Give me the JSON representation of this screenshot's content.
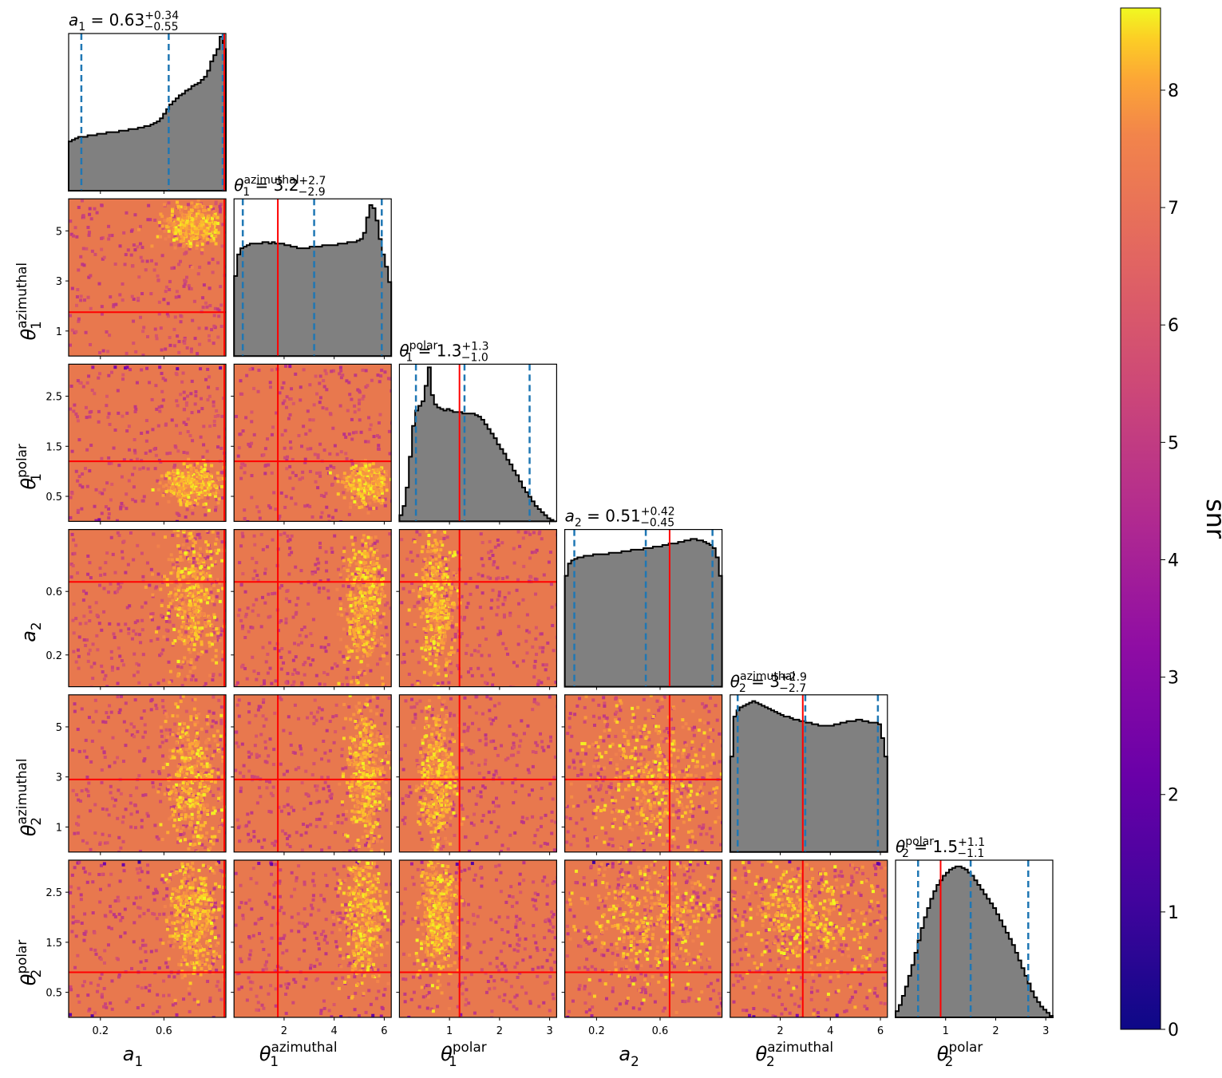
{
  "chart_data": {
    "type": "corner",
    "parameters": [
      {
        "symbol": "a",
        "subscript": "1",
        "superscript": "",
        "range": [
          0,
          0.99
        ],
        "ticks": [
          0.2,
          0.6
        ],
        "tick_labels": [
          "0.2",
          "0.6"
        ],
        "truth": 0.98,
        "title": {
          "value": "0.63",
          "plus": "+0.34",
          "minus": "−0.55"
        },
        "quantiles": [
          0.08,
          0.63,
          0.97
        ],
        "hist": [
          0.32,
          0.33,
          0.34,
          0.35,
          0.35,
          0.35,
          0.36,
          0.36,
          0.36,
          0.37,
          0.37,
          0.37,
          0.38,
          0.38,
          0.38,
          0.38,
          0.39,
          0.39,
          0.39,
          0.4,
          0.4,
          0.4,
          0.41,
          0.41,
          0.42,
          0.42,
          0.43,
          0.44,
          0.45,
          0.47,
          0.5,
          0.53,
          0.56,
          0.58,
          0.6,
          0.62,
          0.63,
          0.65,
          0.66,
          0.68,
          0.69,
          0.7,
          0.72,
          0.74,
          0.78,
          0.84,
          0.88,
          0.92,
          1.0,
          0.92
        ]
      },
      {
        "symbol": "θ",
        "subscript": "1",
        "superscript": "azimuthal",
        "range": [
          0,
          6.28
        ],
        "ticks": [
          1,
          3,
          5
        ],
        "tick_labels": [
          "1",
          "3",
          "5"
        ],
        "axis_ticks": [
          2,
          4,
          6
        ],
        "axis_tick_labels": [
          "2",
          "4",
          "6"
        ],
        "truth": 1.75,
        "title": {
          "value": "3.2",
          "plus": "+2.7",
          "minus": "−2.9"
        },
        "quantiles": [
          0.35,
          3.2,
          5.9
        ],
        "hist": [
          0.52,
          0.66,
          0.7,
          0.71,
          0.72,
          0.73,
          0.73,
          0.73,
          0.73,
          0.74,
          0.74,
          0.73,
          0.74,
          0.73,
          0.73,
          0.73,
          0.72,
          0.72,
          0.71,
          0.71,
          0.7,
          0.7,
          0.7,
          0.7,
          0.71,
          0.71,
          0.71,
          0.71,
          0.72,
          0.72,
          0.72,
          0.72,
          0.72,
          0.73,
          0.73,
          0.73,
          0.74,
          0.74,
          0.74,
          0.75,
          0.76,
          0.8,
          0.9,
          0.98,
          0.96,
          0.88,
          0.76,
          0.66,
          0.58,
          0.48
        ]
      },
      {
        "symbol": "θ",
        "subscript": "1",
        "superscript": "polar",
        "range": [
          0,
          3.14
        ],
        "ticks": [
          0.5,
          1.5,
          2.5
        ],
        "tick_labels": [
          "0.5",
          "1.5",
          "2.5"
        ],
        "axis_ticks": [
          1,
          2,
          3
        ],
        "axis_tick_labels": [
          "1",
          "2",
          "3"
        ],
        "truth": 1.2,
        "title": {
          "value": "1.3",
          "plus": "+1.3",
          "minus": "−1.0"
        },
        "quantiles": [
          0.33,
          1.3,
          2.6
        ],
        "hist": [
          0.04,
          0.1,
          0.22,
          0.42,
          0.62,
          0.72,
          0.75,
          0.78,
          0.88,
          1.0,
          0.82,
          0.76,
          0.74,
          0.73,
          0.72,
          0.73,
          0.72,
          0.71,
          0.71,
          0.71,
          0.7,
          0.7,
          0.7,
          0.7,
          0.69,
          0.68,
          0.66,
          0.63,
          0.6,
          0.57,
          0.54,
          0.5,
          0.47,
          0.44,
          0.4,
          0.37,
          0.33,
          0.3,
          0.26,
          0.22,
          0.19,
          0.16,
          0.13,
          0.1,
          0.08,
          0.06,
          0.04,
          0.02,
          0.01,
          0.0
        ]
      },
      {
        "symbol": "a",
        "subscript": "2",
        "superscript": "",
        "range": [
          0,
          0.99
        ],
        "ticks": [
          0.2,
          0.6
        ],
        "tick_labels": [
          "0.2",
          "0.6"
        ],
        "truth": 0.66,
        "title": {
          "value": "0.51",
          "plus": "+0.42",
          "minus": "−0.45"
        },
        "quantiles": [
          0.06,
          0.51,
          0.93
        ],
        "hist": [
          0.72,
          0.8,
          0.82,
          0.83,
          0.84,
          0.84,
          0.85,
          0.85,
          0.85,
          0.86,
          0.86,
          0.86,
          0.86,
          0.86,
          0.87,
          0.87,
          0.87,
          0.87,
          0.88,
          0.88,
          0.88,
          0.89,
          0.89,
          0.89,
          0.89,
          0.9,
          0.9,
          0.9,
          0.91,
          0.91,
          0.91,
          0.92,
          0.92,
          0.93,
          0.93,
          0.93,
          0.94,
          0.94,
          0.95,
          0.95,
          0.96,
          0.96,
          0.95,
          0.95,
          0.94,
          0.93,
          0.92,
          0.9,
          0.84,
          0.72
        ]
      },
      {
        "symbol": "θ",
        "subscript": "2",
        "superscript": "azimuthal",
        "range": [
          0,
          6.28
        ],
        "ticks": [
          1,
          3,
          5
        ],
        "tick_labels": [
          "1",
          "3",
          "5"
        ],
        "axis_ticks": [
          2,
          4,
          6
        ],
        "axis_tick_labels": [
          "2",
          "4",
          "6"
        ],
        "truth": 2.9,
        "title": {
          "value": "3",
          "plus": "+2.9",
          "minus": "−2.7"
        },
        "quantiles": [
          0.3,
          3.0,
          5.9
        ],
        "hist": [
          0.62,
          0.88,
          0.92,
          0.94,
          0.95,
          0.96,
          0.97,
          0.98,
          0.97,
          0.96,
          0.95,
          0.94,
          0.93,
          0.92,
          0.91,
          0.9,
          0.89,
          0.88,
          0.88,
          0.87,
          0.86,
          0.86,
          0.85,
          0.85,
          0.84,
          0.84,
          0.83,
          0.83,
          0.82,
          0.82,
          0.82,
          0.82,
          0.82,
          0.83,
          0.83,
          0.84,
          0.84,
          0.85,
          0.85,
          0.85,
          0.86,
          0.86,
          0.85,
          0.85,
          0.84,
          0.84,
          0.84,
          0.83,
          0.74,
          0.62
        ]
      },
      {
        "symbol": "θ",
        "subscript": "2",
        "superscript": "polar",
        "range": [
          0,
          3.14
        ],
        "ticks": [
          0.5,
          1.5,
          2.5
        ],
        "tick_labels": [
          "0.5",
          "1.5",
          "2.5"
        ],
        "axis_ticks": [
          1,
          2,
          3
        ],
        "axis_tick_labels": [
          "1",
          "2",
          "3"
        ],
        "truth": 0.9,
        "title": {
          "value": "1.5",
          "plus": "+1.1",
          "minus": "−1.1"
        },
        "quantiles": [
          0.45,
          1.5,
          2.65
        ],
        "hist": [
          0.04,
          0.08,
          0.14,
          0.2,
          0.27,
          0.34,
          0.42,
          0.5,
          0.58,
          0.65,
          0.71,
          0.77,
          0.82,
          0.86,
          0.89,
          0.92,
          0.94,
          0.96,
          0.97,
          0.98,
          0.98,
          0.97,
          0.96,
          0.94,
          0.92,
          0.89,
          0.86,
          0.83,
          0.8,
          0.77,
          0.74,
          0.71,
          0.67,
          0.63,
          0.59,
          0.55,
          0.51,
          0.47,
          0.42,
          0.37,
          0.32,
          0.27,
          0.22,
          0.17,
          0.13,
          0.1,
          0.07,
          0.05,
          0.03,
          0.01
        ]
      }
    ],
    "colorbar": {
      "label": "snr",
      "range": [
        0,
        8.7
      ],
      "ticks": [
        0,
        1,
        2,
        3,
        4,
        5,
        6,
        7,
        8
      ],
      "tick_labels": [
        "0",
        "1",
        "2",
        "3",
        "4",
        "5",
        "6",
        "7",
        "8"
      ],
      "colormap": "plasma"
    },
    "colors": {
      "histogram_fill": "#808080",
      "histogram_edge": "#000000",
      "quantile_line": "#1f77b4",
      "truth_line": "#ff0000",
      "background_snr": "#e8784e"
    }
  }
}
